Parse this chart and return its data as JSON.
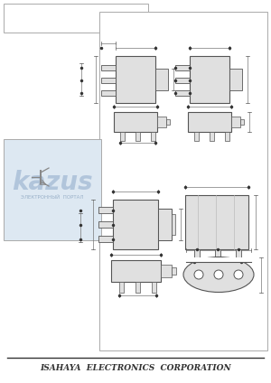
{
  "bg_color": "#e8e8e8",
  "footer_text": "ISAHAYA  ELECTRONICS  CORPORATION",
  "footer_fontsize": 6.5,
  "pkg_fill": "#e0e0e0",
  "pkg_edge": "#555555",
  "dim_color": "#777777",
  "lw_pkg": 0.8,
  "lw_dim": 0.5,
  "lw_border": 0.7
}
